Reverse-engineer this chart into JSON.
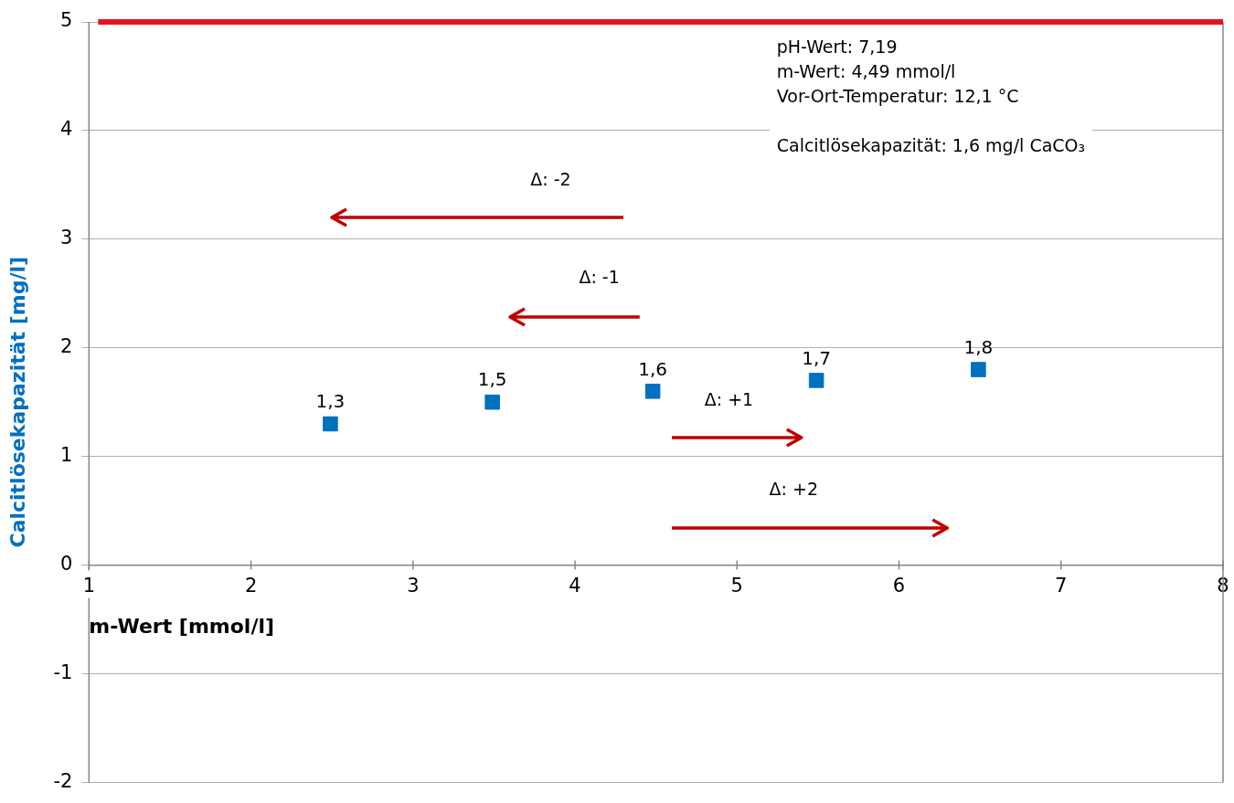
{
  "chart_data": {
    "type": "scatter",
    "xlabel": "m-Wert [mmol/l]",
    "ylabel": "Calcitlösekapazität [mg/l]",
    "x": [
      2.49,
      3.49,
      4.48,
      5.49,
      6.49
    ],
    "values": [
      1.3,
      1.5,
      1.6,
      1.7,
      1.8
    ],
    "value_labels": [
      "1,3",
      "1,5",
      "1,6",
      "1,7",
      "1,8"
    ],
    "color": "#0070c0",
    "marker": "square",
    "xlim": [
      1,
      8
    ],
    "xticks": [
      1,
      2,
      3,
      4,
      5,
      6,
      7,
      8
    ],
    "ylim": [
      -2,
      5
    ],
    "yticks": [
      -2,
      -1,
      0,
      1,
      2,
      3,
      4,
      5
    ],
    "grid": "y",
    "legend": false,
    "ref_lines": [
      {
        "axis": "y",
        "value": 5,
        "color": "#e8141c"
      }
    ],
    "annotations": [
      "pH-Wert: 7,19",
      "m-Wert: 4,49 mmol/l",
      "Vor-Ort-Temperatur: 12,1 °C",
      "Calcitlösekapazität: 1,6 mg/l CaCO₃",
      "Δ: -2",
      "Δ: -1",
      "Δ: +1",
      "Δ: +2"
    ]
  }
}
